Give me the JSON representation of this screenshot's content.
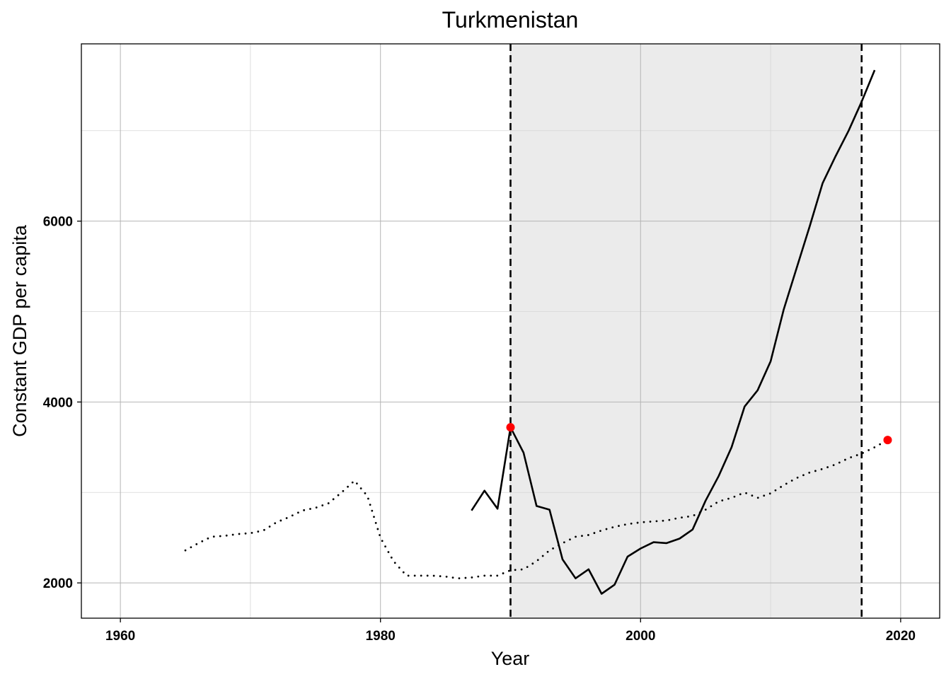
{
  "chart_data": {
    "type": "line",
    "title": "Turkmenistan",
    "xlabel": "Year",
    "ylabel": "Constant GDP per capita",
    "xlim": [
      1957,
      2023
    ],
    "ylim": [
      1610,
      7960
    ],
    "x_ticks": [
      1960,
      1980,
      2000,
      2020
    ],
    "y_ticks": [
      2000,
      4000,
      6000
    ],
    "x_minor_grid": [
      1970,
      1990,
      2010
    ],
    "y_minor_grid": [
      3000,
      5000,
      7000
    ],
    "grid": true,
    "shaded_region": {
      "x": [
        1990,
        2017
      ],
      "color": "#ebebeb"
    },
    "vertical_lines": [
      {
        "x": 1990,
        "style": "dashed"
      },
      {
        "x": 2017,
        "style": "dashed"
      }
    ],
    "series": [
      {
        "style": "solid",
        "color": "#000000",
        "x": [
          1987,
          1988,
          1989,
          1990,
          1991,
          1992,
          1993,
          1994,
          1995,
          1996,
          1997,
          1998,
          1999,
          2000,
          2001,
          2002,
          2003,
          2004,
          2005,
          2006,
          2007,
          2008,
          2009,
          2010,
          2011,
          2012,
          2013,
          2014,
          2015,
          2016,
          2017,
          2018
        ],
        "y": [
          2800,
          3020,
          2820,
          3720,
          3440,
          2850,
          2810,
          2260,
          2050,
          2150,
          1880,
          1980,
          2290,
          2380,
          2450,
          2440,
          2490,
          2590,
          2910,
          3180,
          3500,
          3950,
          4130,
          4450,
          5020,
          5480,
          5940,
          6420,
          6720,
          7000,
          7320,
          7670
        ]
      },
      {
        "style": "dotted",
        "color": "#000000",
        "x": [
          1965,
          1966,
          1967,
          1968,
          1969,
          1970,
          1971,
          1972,
          1973,
          1974,
          1975,
          1976,
          1977,
          1978,
          1979,
          1980,
          1981,
          1982,
          1983,
          1984,
          1985,
          1986,
          1987,
          1988,
          1989,
          1990,
          1991,
          1992,
          1993,
          1994,
          1995,
          1996,
          1997,
          1998,
          1999,
          2000,
          2001,
          2002,
          2003,
          2004,
          2005,
          2006,
          2007,
          2008,
          2009,
          2010,
          2011,
          2012,
          2013,
          2014,
          2015,
          2016,
          2017,
          2018,
          2019
        ],
        "y": [
          2360,
          2440,
          2510,
          2520,
          2540,
          2550,
          2580,
          2670,
          2730,
          2800,
          2830,
          2880,
          3000,
          3130,
          2960,
          2500,
          2240,
          2080,
          2080,
          2080,
          2070,
          2050,
          2060,
          2080,
          2080,
          2140,
          2150,
          2240,
          2360,
          2440,
          2510,
          2530,
          2580,
          2620,
          2650,
          2670,
          2680,
          2690,
          2720,
          2740,
          2810,
          2900,
          2940,
          3000,
          2940,
          2990,
          3080,
          3160,
          3220,
          3260,
          3310,
          3380,
          3430,
          3500,
          3580
        ]
      }
    ],
    "highlight_points": [
      {
        "x": 1990,
        "y": 3720,
        "color": "#ff0000"
      },
      {
        "x": 2019,
        "y": 3580,
        "color": "#ff0000"
      }
    ]
  }
}
